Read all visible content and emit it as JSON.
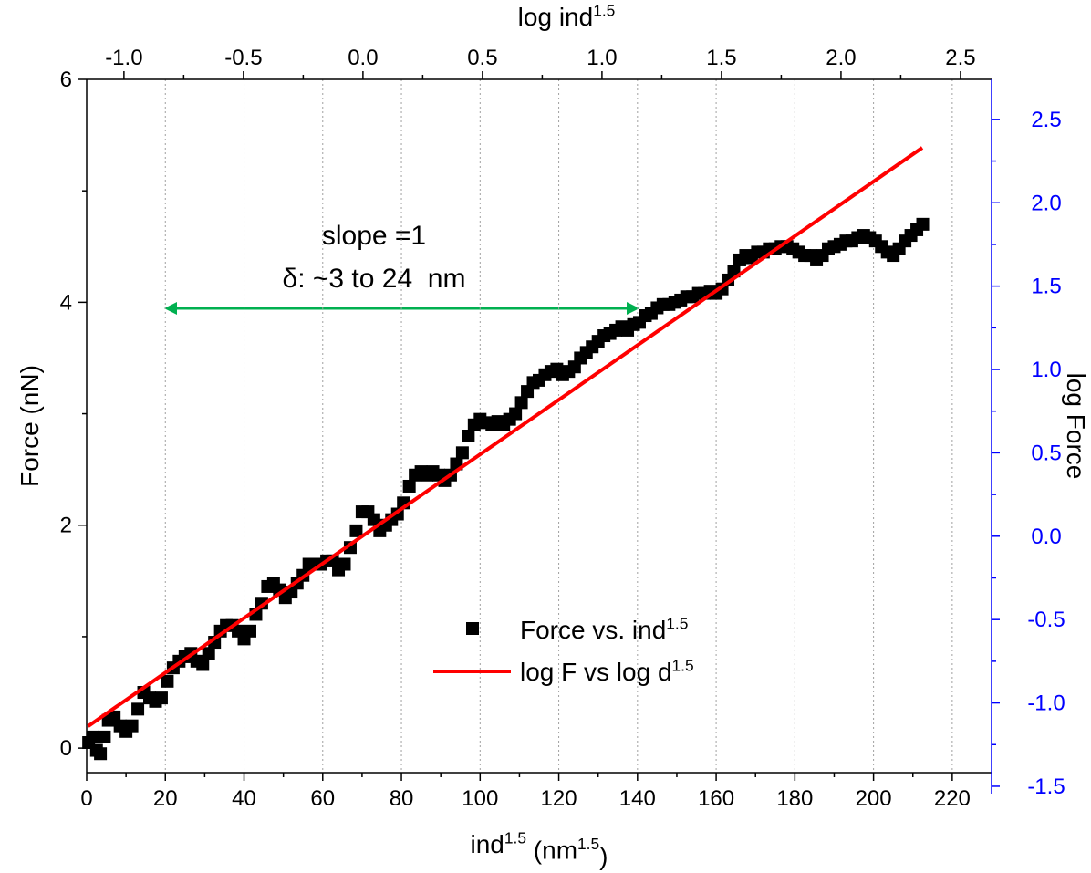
{
  "chart_data": {
    "type": "scatter",
    "xlabel": [
      "ind",
      "1.5",
      " (nm",
      "1.5",
      ")"
    ],
    "ylabel": "Force (nN)",
    "x2label": [
      "log ind",
      "1.5"
    ],
    "y2label": "log Force",
    "annotations": [
      "slope =1",
      "δ: ~3 to 24  nm"
    ],
    "xlim": [
      0,
      230
    ],
    "xticks": [
      0,
      20,
      40,
      60,
      80,
      100,
      120,
      140,
      160,
      180,
      200,
      220
    ],
    "ylim": [
      -0.22,
      6
    ],
    "yticks": [
      0,
      2,
      4,
      6
    ],
    "x2lim": [
      -1.156,
      2.63
    ],
    "x2ticks": [
      {
        "value": -1,
        "label": "-1.0"
      },
      -0.5,
      {
        "value": 0,
        "label": "0.0"
      },
      0.5,
      {
        "value": 1,
        "label": "1.0"
      },
      1.5,
      {
        "value": 2,
        "label": "2.0"
      },
      2.5
    ],
    "y2lim": [
      -1.544,
      2.74
    ],
    "y2ticks": [
      {
        "value": -1.5,
        "label": "-1.5"
      },
      {
        "value": -1,
        "label": "-1.0"
      },
      -0.5,
      {
        "value": 0,
        "label": "0.0"
      },
      0.5,
      {
        "value": 1,
        "label": "1.0"
      },
      1.5,
      {
        "value": 2,
        "label": "2.0"
      },
      2.5
    ],
    "y2color": "#0000ff",
    "grid": true,
    "series": [
      {
        "name": [
          "Force vs. ind",
          "1.5"
        ],
        "color": "#000000",
        "mode": "markers",
        "x": [
          0.5,
          1.5,
          2.5,
          3.5,
          4.5,
          5.5,
          7,
          8.5,
          10,
          11.5,
          13,
          14.5,
          16,
          17.5,
          19,
          20.5,
          22,
          23.5,
          25,
          26.5,
          28,
          29.5,
          31,
          32.5,
          34,
          35.5,
          37,
          38.5,
          40,
          41.5,
          43,
          44.5,
          46,
          47.5,
          49,
          50.5,
          52,
          53.5,
          55,
          56.5,
          58,
          59.5,
          61,
          62.5,
          64,
          65.5,
          67,
          68.5,
          70,
          71.5,
          73,
          74.5,
          76,
          77.5,
          79,
          80.5,
          82,
          83.5,
          85,
          86.5,
          88,
          89.5,
          91,
          92.5,
          94,
          95.5,
          97,
          98.5,
          100,
          101.5,
          103,
          104.5,
          106,
          107.5,
          109,
          110.5,
          112,
          113.5,
          115,
          116.5,
          118,
          119.5,
          121,
          122.5,
          124,
          125.5,
          127,
          128.5,
          130,
          131.5,
          133,
          134.5,
          136,
          137.5,
          139,
          140.5,
          142,
          143.5,
          145,
          146.5,
          148,
          149.5,
          151,
          152.5,
          154,
          155.5,
          157,
          158.5,
          160,
          161.5,
          163,
          164.5,
          166,
          167.5,
          169,
          170.5,
          172,
          173.5,
          175,
          176.5,
          178,
          179.5,
          181,
          182.5,
          184,
          185.5,
          187,
          188.5,
          190,
          191.5,
          193,
          194.5,
          196,
          197.5,
          199,
          200.5,
          202,
          203.5,
          205,
          206.5,
          208,
          209.5,
          211,
          212.5
        ],
        "values": [
          0.05,
          0.1,
          -0.02,
          -0.05,
          0.1,
          0.25,
          0.28,
          0.2,
          0.15,
          0.2,
          0.35,
          0.5,
          0.45,
          0.42,
          0.45,
          0.6,
          0.72,
          0.78,
          0.82,
          0.85,
          0.78,
          0.75,
          0.85,
          0.95,
          1.05,
          1.1,
          1.1,
          1.05,
          0.98,
          1.05,
          1.2,
          1.3,
          1.45,
          1.48,
          1.42,
          1.35,
          1.4,
          1.48,
          1.55,
          1.65,
          1.65,
          1.65,
          1.68,
          1.68,
          1.6,
          1.65,
          1.8,
          1.95,
          2.12,
          2.12,
          2.05,
          1.95,
          2.0,
          2.05,
          2.1,
          2.2,
          2.35,
          2.45,
          2.48,
          2.45,
          2.48,
          2.45,
          2.4,
          2.45,
          2.55,
          2.65,
          2.8,
          2.9,
          2.95,
          2.92,
          2.9,
          2.93,
          2.9,
          2.95,
          3.0,
          3.1,
          3.2,
          3.28,
          3.3,
          3.35,
          3.38,
          3.4,
          3.35,
          3.38,
          3.42,
          3.5,
          3.55,
          3.6,
          3.65,
          3.7,
          3.72,
          3.75,
          3.78,
          3.75,
          3.8,
          3.82,
          3.88,
          3.9,
          3.95,
          3.98,
          3.98,
          4.0,
          4.02,
          4.05,
          4.05,
          4.08,
          4.08,
          4.1,
          4.08,
          4.12,
          4.2,
          4.28,
          4.38,
          4.42,
          4.4,
          4.45,
          4.45,
          4.48,
          4.48,
          4.5,
          4.5,
          4.48,
          4.45,
          4.42,
          4.42,
          4.38,
          4.42,
          4.48,
          4.5,
          4.52,
          4.55,
          4.55,
          4.58,
          4.6,
          4.58,
          4.55,
          4.5,
          4.45,
          4.42,
          4.48,
          4.55,
          4.6,
          4.65,
          4.7
        ]
      },
      {
        "name": [
          "log F vs log d",
          "1.5"
        ],
        "color": "#ff0000",
        "mode": "line",
        "xaxis": "x2",
        "axis": "y2",
        "x": [
          -1.15,
          2.34
        ],
        "values": [
          -1.14,
          2.33
        ]
      }
    ]
  }
}
